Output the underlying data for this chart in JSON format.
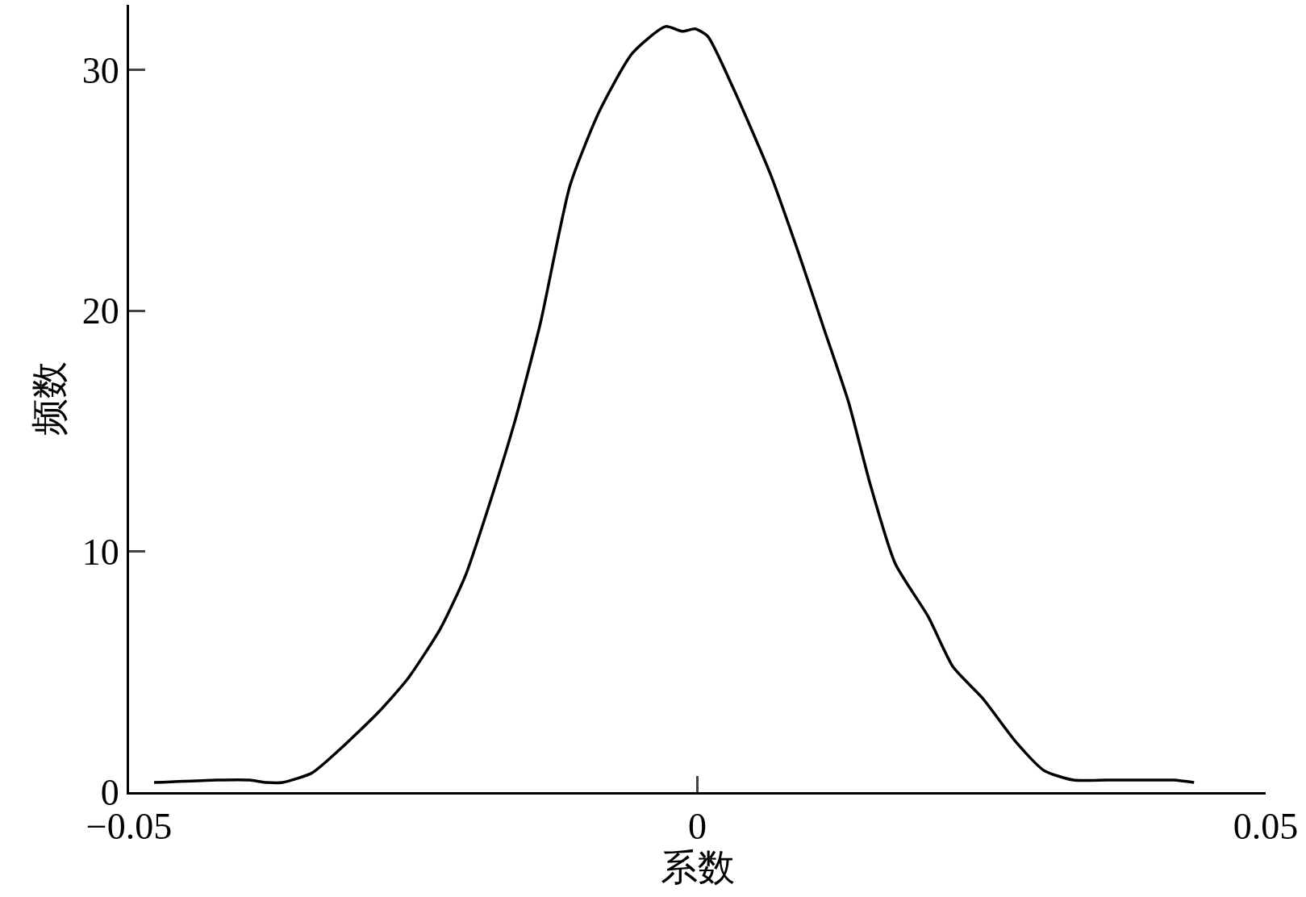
{
  "chart_data": {
    "type": "line",
    "xlabel": "系数",
    "ylabel": "频数",
    "x": [
      -0.0478,
      -0.0423,
      -0.0394,
      -0.0379,
      -0.0365,
      -0.0339,
      -0.0314,
      -0.0281,
      -0.0255,
      -0.0226,
      -0.0204,
      -0.0182,
      -0.016,
      -0.0138,
      -0.0112,
      -0.0086,
      -0.0057,
      -0.0028,
      -0.0013,
      -0.0002,
      0.0009,
      0.0031,
      0.0064,
      0.0089,
      0.0111,
      0.0133,
      0.0152,
      0.0174,
      0.0203,
      0.0225,
      0.0251,
      0.028,
      0.0305,
      0.0331,
      0.036,
      0.039,
      0.0419,
      0.0437
    ],
    "series": [
      {
        "color": "#000000",
        "values": [
          0.4,
          0.5,
          0.5,
          0.4,
          0.4,
          0.8,
          1.8,
          3.3,
          4.7,
          6.8,
          9.0,
          12.1,
          15.5,
          19.5,
          25.2,
          28.3,
          30.7,
          31.8,
          31.6,
          31.7,
          31.4,
          29.3,
          25.7,
          22.4,
          19.3,
          16.2,
          12.8,
          9.5,
          7.3,
          5.2,
          3.9,
          2.1,
          0.9,
          0.5,
          0.5,
          0.5,
          0.5,
          0.4
        ]
      }
    ],
    "xlim": [
      -0.05,
      0.05
    ],
    "xticks": [
      {
        "value": -0.05,
        "label": "−0.05"
      },
      0,
      0.05
    ],
    "ylim": [
      0,
      32.7
    ],
    "yticks": [
      0,
      10,
      20,
      30
    ],
    "grid": false,
    "marker": "none",
    "line_style": "solid"
  }
}
